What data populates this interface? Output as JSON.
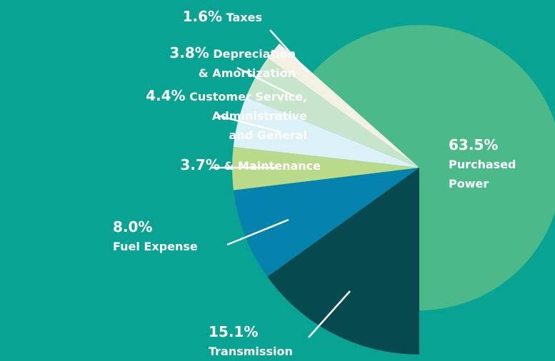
{
  "chart_data": {
    "type": "pie",
    "categories": [
      "Purchased Power",
      "Transmission",
      "Fuel Expense",
      "& Maintenance",
      "Customer Service,\nAdministrative\nand General",
      "Depreciation\n& Amortization",
      "Taxes"
    ],
    "values": [
      63.5,
      15.1,
      8.0,
      3.7,
      4.4,
      3.8,
      1.6
    ],
    "value_labels": [
      "63.5%",
      "15.1%",
      "8.0%",
      "3.7%",
      "4.4%",
      "3.8%",
      "1.6%"
    ],
    "colors": [
      "#4cb98a",
      "#064a4f",
      "#0683ad",
      "#b9d98b",
      "#dbf0f7",
      "#c7e5cb",
      "#f3f1e3"
    ]
  }
}
